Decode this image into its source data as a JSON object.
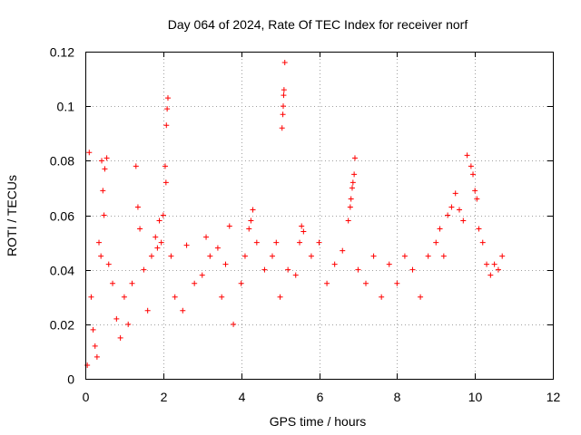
{
  "chart_data": {
    "type": "scatter",
    "title": "Day 064 of 2024, Rate Of TEC Index for receiver norf",
    "xlabel": "GPS time / hours",
    "ylabel": "ROTI / TECUs",
    "xlim": [
      0,
      12
    ],
    "ylim": [
      0,
      0.12
    ],
    "xticks": [
      0,
      2,
      4,
      6,
      8,
      10,
      12
    ],
    "yticks": [
      0,
      0.02,
      0.04,
      0.06,
      0.08,
      0.1,
      0.12
    ],
    "xtick_labels": [
      "0",
      "2",
      "4",
      "6",
      "8",
      "10",
      "12"
    ],
    "ytick_labels": [
      "0",
      "0.02",
      "0.04",
      "0.06",
      "0.08",
      "0.1",
      "0.12"
    ],
    "grid": true,
    "marker": "+",
    "color": "#ff0000",
    "series": [
      {
        "name": "ROTI",
        "points": [
          [
            0.05,
            0.005
          ],
          [
            0.1,
            0.083
          ],
          [
            0.15,
            0.03
          ],
          [
            0.2,
            0.018
          ],
          [
            0.25,
            0.012
          ],
          [
            0.3,
            0.008
          ],
          [
            0.35,
            0.05
          ],
          [
            0.4,
            0.045
          ],
          [
            0.42,
            0.08
          ],
          [
            0.45,
            0.069
          ],
          [
            0.48,
            0.06
          ],
          [
            0.5,
            0.077
          ],
          [
            0.55,
            0.081
          ],
          [
            0.6,
            0.042
          ],
          [
            0.7,
            0.035
          ],
          [
            0.8,
            0.022
          ],
          [
            0.9,
            0.015
          ],
          [
            1.0,
            0.03
          ],
          [
            1.1,
            0.02
          ],
          [
            1.2,
            0.035
          ],
          [
            1.3,
            0.078
          ],
          [
            1.35,
            0.063
          ],
          [
            1.4,
            0.055
          ],
          [
            1.5,
            0.04
          ],
          [
            1.6,
            0.025
          ],
          [
            1.7,
            0.045
          ],
          [
            1.8,
            0.052
          ],
          [
            1.85,
            0.048
          ],
          [
            1.9,
            0.058
          ],
          [
            1.95,
            0.05
          ],
          [
            2.0,
            0.06
          ],
          [
            2.05,
            0.078
          ],
          [
            2.07,
            0.072
          ],
          [
            2.08,
            0.093
          ],
          [
            2.1,
            0.099
          ],
          [
            2.12,
            0.103
          ],
          [
            2.2,
            0.045
          ],
          [
            2.3,
            0.03
          ],
          [
            2.5,
            0.025
          ],
          [
            2.6,
            0.049
          ],
          [
            2.8,
            0.035
          ],
          [
            3.0,
            0.038
          ],
          [
            3.1,
            0.052
          ],
          [
            3.2,
            0.045
          ],
          [
            3.4,
            0.048
          ],
          [
            3.5,
            0.03
          ],
          [
            3.6,
            0.042
          ],
          [
            3.7,
            0.056
          ],
          [
            3.8,
            0.02
          ],
          [
            4.0,
            0.035
          ],
          [
            4.1,
            0.045
          ],
          [
            4.2,
            0.055
          ],
          [
            4.25,
            0.058
          ],
          [
            4.3,
            0.062
          ],
          [
            4.4,
            0.05
          ],
          [
            4.6,
            0.04
          ],
          [
            4.8,
            0.045
          ],
          [
            4.9,
            0.05
          ],
          [
            5.0,
            0.03
          ],
          [
            5.05,
            0.092
          ],
          [
            5.07,
            0.097
          ],
          [
            5.08,
            0.1
          ],
          [
            5.09,
            0.104
          ],
          [
            5.1,
            0.106
          ],
          [
            5.12,
            0.116
          ],
          [
            5.2,
            0.04
          ],
          [
            5.4,
            0.038
          ],
          [
            5.5,
            0.05
          ],
          [
            5.55,
            0.056
          ],
          [
            5.6,
            0.054
          ],
          [
            5.8,
            0.045
          ],
          [
            6.0,
            0.05
          ],
          [
            6.2,
            0.035
          ],
          [
            6.4,
            0.042
          ],
          [
            6.6,
            0.047
          ],
          [
            6.75,
            0.058
          ],
          [
            6.8,
            0.063
          ],
          [
            6.82,
            0.066
          ],
          [
            6.85,
            0.07
          ],
          [
            6.87,
            0.072
          ],
          [
            6.9,
            0.075
          ],
          [
            6.92,
            0.081
          ],
          [
            7.0,
            0.04
          ],
          [
            7.2,
            0.035
          ],
          [
            7.4,
            0.045
          ],
          [
            7.6,
            0.03
          ],
          [
            7.8,
            0.042
          ],
          [
            8.0,
            0.035
          ],
          [
            8.2,
            0.045
          ],
          [
            8.4,
            0.04
          ],
          [
            8.6,
            0.03
          ],
          [
            8.8,
            0.045
          ],
          [
            9.0,
            0.05
          ],
          [
            9.1,
            0.055
          ],
          [
            9.2,
            0.045
          ],
          [
            9.3,
            0.06
          ],
          [
            9.4,
            0.063
          ],
          [
            9.5,
            0.068
          ],
          [
            9.6,
            0.062
          ],
          [
            9.7,
            0.058
          ],
          [
            9.8,
            0.082
          ],
          [
            9.9,
            0.078
          ],
          [
            9.95,
            0.075
          ],
          [
            10.0,
            0.069
          ],
          [
            10.05,
            0.066
          ],
          [
            10.1,
            0.055
          ],
          [
            10.2,
            0.05
          ],
          [
            10.3,
            0.042
          ],
          [
            10.4,
            0.038
          ],
          [
            10.5,
            0.042
          ],
          [
            10.6,
            0.04
          ],
          [
            10.7,
            0.045
          ]
        ]
      }
    ]
  }
}
